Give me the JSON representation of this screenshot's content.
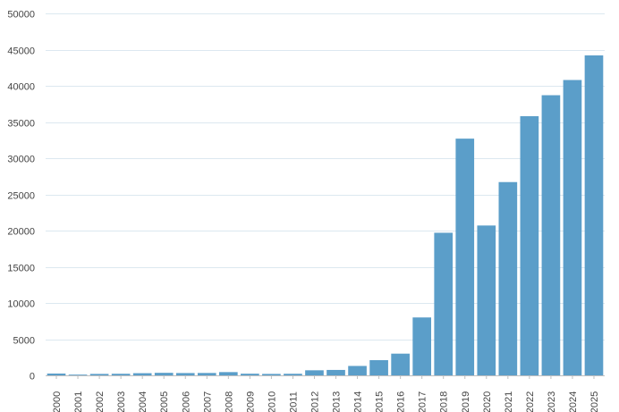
{
  "chart_data": {
    "type": "bar",
    "title": "",
    "xlabel": "",
    "ylabel": "",
    "categories": [
      "2000",
      "2001",
      "2002",
      "2003",
      "2004",
      "2005",
      "2006",
      "2007",
      "2008",
      "2009",
      "2010",
      "2011",
      "2012",
      "2013",
      "2014",
      "2015",
      "2016",
      "2017",
      "2018",
      "2019",
      "2020",
      "2021",
      "2022",
      "2023",
      "2024",
      "2025"
    ],
    "values": [
      250,
      100,
      200,
      220,
      300,
      350,
      320,
      330,
      450,
      230,
      200,
      220,
      700,
      750,
      1300,
      2100,
      3000,
      8000,
      19700,
      32700,
      20700,
      26700,
      35800,
      38700,
      40800,
      44200
    ],
    "ylim": [
      0,
      50000
    ],
    "yticks": [
      "0",
      "5000",
      "10000",
      "15000",
      "20000",
      "25000",
      "30000",
      "35000",
      "40000",
      "45000",
      "50000"
    ],
    "grid": true,
    "legend": "none",
    "colors": {
      "bar": "#5b9ec9",
      "grid": "#dce8f0",
      "axis": "#bfbfbf",
      "text": "#444444"
    }
  }
}
